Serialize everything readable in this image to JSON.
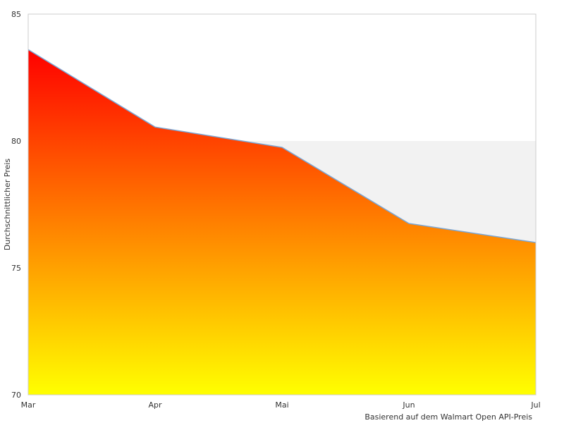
{
  "chart_data": {
    "type": "area",
    "categories": [
      "Mar",
      "Apr",
      "Mai",
      "Jun",
      "Jul"
    ],
    "values": [
      83.6,
      80.55,
      79.75,
      76.75,
      76.0
    ],
    "ylabel": "Durchschnittlicher Preis",
    "xlabel": "",
    "ylim": [
      70,
      85
    ],
    "yticks": [
      70,
      75,
      80,
      85
    ],
    "caption": "Basierend auf dem Walmart Open API-Preis",
    "grid": true,
    "band": {
      "from": 75,
      "to": 80
    },
    "colors": {
      "fill_top": "#ff0000",
      "fill_bottom": "#ffff00",
      "line": "#7aa7d6",
      "band": "#f2f2f2",
      "axis": "#cccccc"
    }
  }
}
